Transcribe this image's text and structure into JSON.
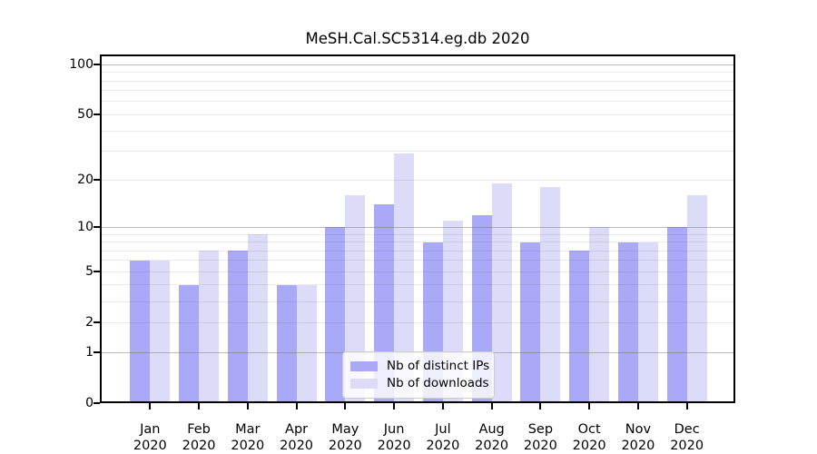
{
  "chart_data": {
    "type": "bar",
    "title": "MeSH.Cal.SC5314.eg.db 2020",
    "categories": [
      "Jan",
      "Feb",
      "Mar",
      "Apr",
      "May",
      "Jun",
      "Jul",
      "Aug",
      "Sep",
      "Oct",
      "Nov",
      "Dec"
    ],
    "x_tick_year": "2020",
    "series": [
      {
        "name": "Nb of distinct IPs",
        "color": "#a9a9f7",
        "values": [
          6,
          4,
          7,
          4,
          10,
          14,
          8,
          12,
          8,
          7,
          8,
          10
        ]
      },
      {
        "name": "Nb of downloads",
        "color": "#dcdcf8",
        "values": [
          6,
          7,
          9,
          4,
          16,
          29,
          11,
          19,
          18,
          10,
          8,
          16
        ]
      }
    ],
    "y_axis": {
      "scale": "log10(1+x)",
      "ticks": [
        0,
        1,
        2,
        5,
        10,
        20,
        50,
        100
      ],
      "major_gridlines": [
        1,
        10,
        100
      ],
      "minor_gridlines": [
        2,
        3,
        4,
        5,
        6,
        7,
        8,
        9,
        20,
        30,
        40,
        50,
        60,
        70,
        80,
        90
      ],
      "ylim": [
        0,
        110
      ]
    },
    "legend": {
      "position": "inside-bottom-center"
    },
    "colors": {
      "background": "#ffffff",
      "axis": "#000000",
      "grid_major": "#b4b4b4",
      "grid_minor": "#ebebeb",
      "bar_ips": "#a9a9f7",
      "bar_downloads": "#dcdcf8"
    }
  }
}
